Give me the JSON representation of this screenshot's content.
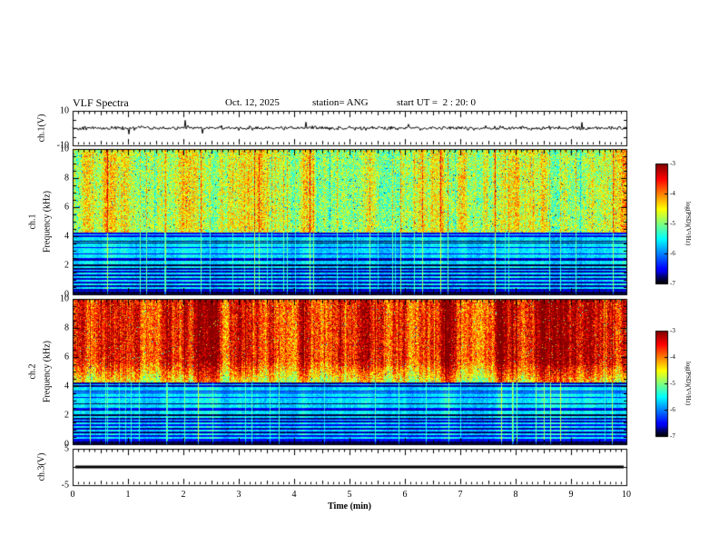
{
  "header": {
    "title": "VLF Spectra",
    "date": "Oct. 12, 2025",
    "station": "station= ANG",
    "start_ut": "start UT =  2 : 20: 0"
  },
  "x_axis": {
    "label": "Time (min)",
    "ticks": [
      "0",
      "1",
      "2",
      "3",
      "4",
      "5",
      "6",
      "7",
      "8",
      "9",
      "10"
    ],
    "range": [
      0,
      10
    ]
  },
  "panels": {
    "ch1_wave": {
      "ylabel": "ch.1(V)",
      "yticks": [
        "10",
        "-10"
      ],
      "ylim": [
        -10,
        10
      ]
    },
    "ch1_spec": {
      "channel": "ch.1",
      "ylabel": "Frequency (kHz)",
      "yticks": [
        "10",
        "8",
        "6",
        "4",
        "2",
        "0"
      ],
      "ylim": [
        0,
        10
      ]
    },
    "ch2_spec": {
      "channel": "ch.2",
      "ylabel": "Frequency (kHz)",
      "yticks": [
        "10",
        "8",
        "6",
        "4",
        "2",
        "0"
      ],
      "ylim": [
        0,
        10
      ]
    },
    "ch3_wave": {
      "ylabel": "ch.3(V)",
      "yticks": [
        "5",
        "-5"
      ],
      "ylim": [
        -5,
        5
      ]
    }
  },
  "colorbar": {
    "label": "log(PSD)(V²/Hz)",
    "ticks": [
      "-3",
      "-4",
      "-5",
      "-6",
      "-7"
    ],
    "range": [
      -7,
      -3
    ],
    "colors_top_to_bottom": [
      "#bf0000",
      "#ff8000",
      "#ffff00",
      "#00ff80",
      "#00ffff",
      "#0000ff",
      "#000000"
    ]
  },
  "chart_data": [
    {
      "panel": "ch1_waveform",
      "type": "line",
      "ylabel": "ch.1(V)",
      "xlim": [
        0,
        10
      ],
      "ylim": [
        -10,
        10
      ],
      "trace_color": "#000000",
      "description": "Black noise trace centered near 0 V, ~±1.5 V dense band with sparse impulsive spikes reaching about ±6 V"
    },
    {
      "panel": "ch1_spectrogram",
      "type": "heatmap",
      "ylabel": "Frequency (kHz)",
      "xlim": [
        0,
        10
      ],
      "ylim": [
        0,
        10
      ],
      "zlabel": "log(PSD)(V²/Hz)",
      "zlim": [
        -7,
        -3
      ],
      "transition_khz": 4.3,
      "upper_level_log": -4.7,
      "lower_level_log": -6.7,
      "band_level_log": -5.6,
      "horizontal_bands_khz": [
        4.15,
        3.95,
        3.8,
        3.65,
        3.5,
        3.35,
        3.2,
        3.05,
        2.9,
        2.75,
        2.6,
        2.3,
        2.15,
        1.9,
        1.7,
        1.45,
        1.2,
        0.95,
        0.7,
        0.45
      ],
      "dark_bands_khz": [
        [
          1.95,
          2.1
        ],
        [
          0.0,
          0.25
        ]
      ],
      "description": "Green/yellow broadband hiss above ~4.3 kHz with dense vertical sferic striations; dark blue background below 4 kHz crossed by bright cyan horizontal power-line harmonics and vertical impulses"
    },
    {
      "panel": "ch2_spectrogram",
      "type": "heatmap",
      "ylabel": "Frequency (kHz)",
      "xlim": [
        0,
        10
      ],
      "ylim": [
        0,
        10
      ],
      "zlabel": "log(PSD)(V²/Hz)",
      "zlim": [
        -7,
        -3
      ],
      "transition_khz": 4.3,
      "upper_level_log": -4.6,
      "hot_level_log": -3.6,
      "lower_level_log": -6.7,
      "band_level_log": -5.6,
      "horizontal_bands_khz": [
        4.15,
        3.95,
        3.8,
        3.65,
        3.5,
        3.35,
        3.2,
        3.05,
        2.9,
        2.75,
        2.6,
        2.3,
        2.15,
        1.9,
        1.7,
        1.45,
        1.2,
        0.95,
        0.7,
        0.45
      ],
      "dark_bands_khz": [
        [
          1.95,
          2.1
        ],
        [
          0.0,
          0.25
        ]
      ],
      "description": "Intense yellow/orange/red hiss above ~6 kHz with red vertical bursts, green mid band 4-6 kHz; dark blue background below 4 kHz with cyan horizontal harmonic lines and vertical impulses"
    },
    {
      "panel": "ch3_waveform",
      "type": "line",
      "ylabel": "ch.3(V)",
      "xlim": [
        0,
        10
      ],
      "ylim": [
        -5,
        5
      ],
      "value": 0,
      "trace_color": "#000000",
      "description": "Flat thick black line, constant ≈0 V across the full 10 minutes"
    }
  ]
}
